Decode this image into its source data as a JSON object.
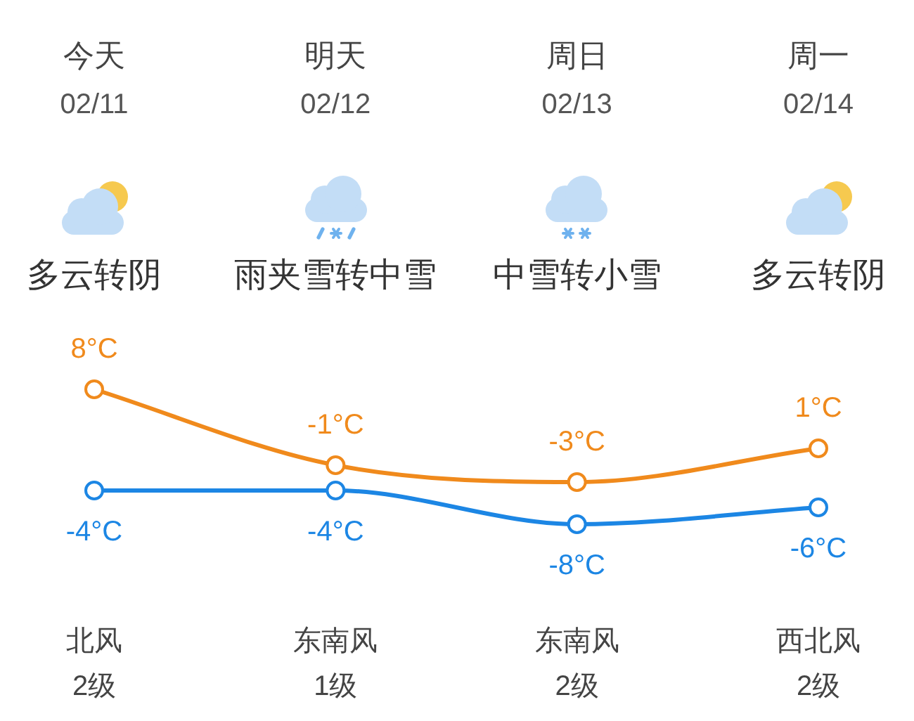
{
  "chart_data": {
    "type": "line",
    "categories": [
      "今天",
      "明天",
      "周日",
      "周一"
    ],
    "series": [
      {
        "color": "#f08a1c",
        "values": [
          8,
          -1,
          -3,
          1
        ],
        "value_labels": [
          "8°C",
          "-1°C",
          "-3°C",
          "1°C"
        ]
      },
      {
        "color": "#1c86e4",
        "values": [
          -4,
          -4,
          -8,
          -6
        ],
        "value_labels": [
          "-4°C",
          "-4°C",
          "-8°C",
          "-6°C"
        ]
      }
    ],
    "tick_labels": "x",
    "grid": false,
    "marker": "circle",
    "line_style": "solid",
    "annotations": [
      "02/11",
      "02/12",
      "02/13",
      "02/14",
      "多云转阴",
      "雨夹雪转中雪",
      "中雪转小雪",
      "多云转阴",
      "北风",
      "东南风",
      "东南风",
      "西北风",
      "2级",
      "1级",
      "2级",
      "2级"
    ]
  }
}
